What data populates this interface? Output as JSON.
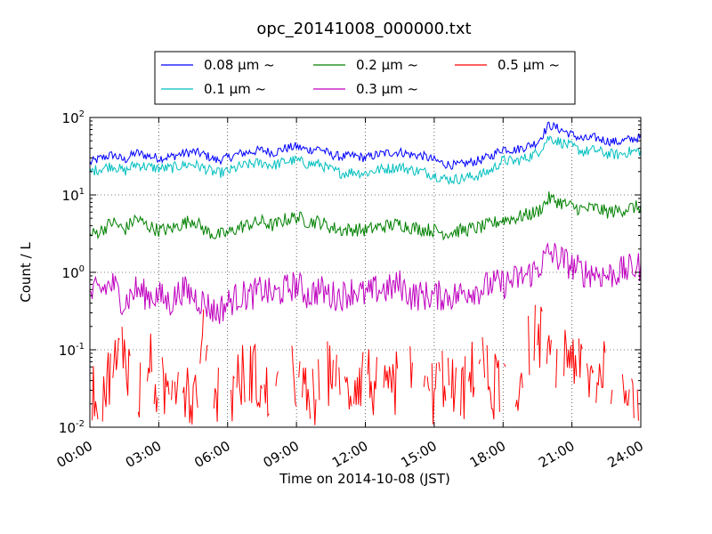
{
  "chart_data": {
    "type": "line",
    "title": "opc_20141008_000000.txt",
    "xlabel": "Time on 2014-10-08 (JST)",
    "ylabel": "Count / L",
    "yscale": "log",
    "xlim": [
      0,
      24
    ],
    "ylim": [
      0.01,
      100
    ],
    "grid": true,
    "legend_position": "top, above plot, 3 columns",
    "x_tick_labels": [
      "00:00",
      "03:00",
      "06:00",
      "09:00",
      "12:00",
      "15:00",
      "18:00",
      "21:00",
      "24:00"
    ],
    "y_tick_exponents": [
      "-2",
      "-1",
      "0",
      "1",
      "2"
    ],
    "y_tick_base": "10",
    "x_hours": [
      0,
      0.5,
      1,
      1.5,
      2,
      2.5,
      3,
      3.5,
      4,
      4.5,
      5,
      5.5,
      6,
      6.5,
      7,
      7.5,
      8,
      8.5,
      9,
      9.5,
      10,
      10.5,
      11,
      11.5,
      12,
      12.5,
      13,
      13.5,
      14,
      14.5,
      15,
      15.5,
      16,
      16.5,
      17,
      17.5,
      18,
      18.5,
      19,
      19.5,
      20,
      20.5,
      21,
      21.5,
      22,
      22.5,
      23,
      23.5,
      24
    ],
    "series": [
      {
        "name": "0.08 μm ~",
        "color": "#0000ff",
        "values": [
          26,
          30,
          33,
          28,
          35,
          32,
          30,
          31,
          34,
          36,
          33,
          28,
          30,
          34,
          36,
          38,
          35,
          40,
          42,
          38,
          40,
          33,
          31,
          32,
          30,
          33,
          35,
          36,
          33,
          32,
          28,
          25,
          24,
          26,
          28,
          32,
          40,
          38,
          42,
          48,
          80,
          70,
          60,
          52,
          55,
          50,
          48,
          52,
          55
        ]
      },
      {
        "name": "0.1 μm ~",
        "color": "#00bfbf",
        "values": [
          20,
          22,
          24,
          20,
          25,
          23,
          22,
          22,
          24,
          25,
          22,
          19,
          20,
          23,
          25,
          26,
          24,
          27,
          28,
          25,
          25,
          21,
          19,
          20,
          19,
          21,
          22,
          23,
          21,
          20,
          18,
          16,
          16,
          17,
          18,
          21,
          28,
          27,
          30,
          35,
          55,
          48,
          42,
          36,
          38,
          34,
          33,
          36,
          37
        ]
      },
      {
        "name": "0.2 μm ~",
        "color": "#008000",
        "values": [
          3.0,
          3.5,
          4.5,
          3.5,
          5.0,
          4.0,
          3.5,
          3.6,
          4.2,
          4.8,
          3.5,
          3.0,
          3.2,
          3.8,
          4.2,
          4.5,
          4.0,
          4.8,
          5.2,
          4.5,
          4.5,
          3.8,
          3.5,
          3.6,
          3.5,
          3.8,
          4.0,
          4.2,
          3.8,
          3.6,
          3.5,
          3.2,
          3.4,
          3.6,
          3.8,
          4.2,
          4.8,
          5.0,
          5.5,
          6.0,
          9.0,
          8.0,
          7.0,
          6.5,
          6.8,
          6.0,
          6.2,
          6.8,
          7.0
        ]
      },
      {
        "name": "0.3 μm ~",
        "color": "#bf00bf",
        "values": [
          0.5,
          0.6,
          0.7,
          0.4,
          0.6,
          0.5,
          0.5,
          0.4,
          0.6,
          0.5,
          0.4,
          0.3,
          0.4,
          0.5,
          0.5,
          0.6,
          0.5,
          0.6,
          0.7,
          0.5,
          0.6,
          0.5,
          0.5,
          0.6,
          0.5,
          0.6,
          0.6,
          0.7,
          0.5,
          0.5,
          0.5,
          0.5,
          0.5,
          0.6,
          0.6,
          0.7,
          0.7,
          0.8,
          0.9,
          1.1,
          1.8,
          1.5,
          1.2,
          1.0,
          1.0,
          0.9,
          1.0,
          1.1,
          1.2
        ]
      },
      {
        "name": "0.5 μm ~",
        "color": "#ff0000",
        "values": [
          null,
          0.03,
          0.05,
          0.12,
          0.02,
          0.08,
          0.03,
          null,
          0.05,
          0.02,
          0.15,
          0.03,
          0.02,
          0.04,
          0.06,
          0.03,
          0.02,
          0.05,
          0.04,
          0.02,
          0.03,
          0.06,
          0.02,
          0.04,
          0.05,
          0.03,
          0.02,
          0.06,
          0.04,
          0.02,
          0.03,
          0.05,
          0.02,
          0.04,
          0.08,
          0.03,
          0.05,
          0.02,
          0.1,
          0.2,
          0.06,
          0.08,
          0.1,
          0.05,
          0.04,
          0.08,
          0.03,
          0.05,
          0.02
        ]
      }
    ]
  }
}
